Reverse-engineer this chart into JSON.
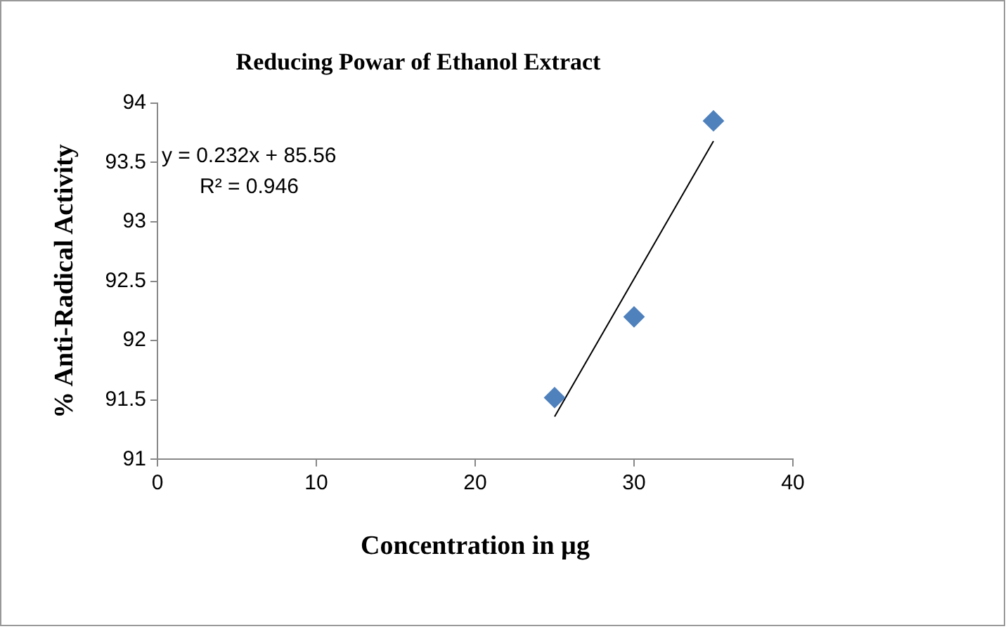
{
  "chart_data": {
    "type": "scatter",
    "title": "Reducing Powar of Ethanol Extract",
    "xlabel": "Concentration in µg",
    "ylabel": "% Anti-Radical Activity",
    "x": [
      25,
      30,
      35
    ],
    "series": [
      {
        "type": "scatter",
        "color": "#4f81bd",
        "values": [
          91.52,
          92.2,
          93.85
        ],
        "marker": "diamond"
      },
      {
        "type": "line",
        "color": "#000000",
        "x": [
          25,
          35
        ],
        "values": [
          91.36,
          93.68
        ],
        "marker": "none"
      }
    ],
    "xlim": [
      0,
      40
    ],
    "xticks": [
      0,
      10,
      20,
      30,
      40
    ],
    "ylim": [
      91,
      94
    ],
    "yticks": [
      91,
      91.5,
      92,
      92.5,
      93,
      93.5,
      94
    ],
    "grid": false,
    "legend": false,
    "annotations": [
      "y = 0.232x + 85.56",
      "R² = 0.946"
    ]
  }
}
